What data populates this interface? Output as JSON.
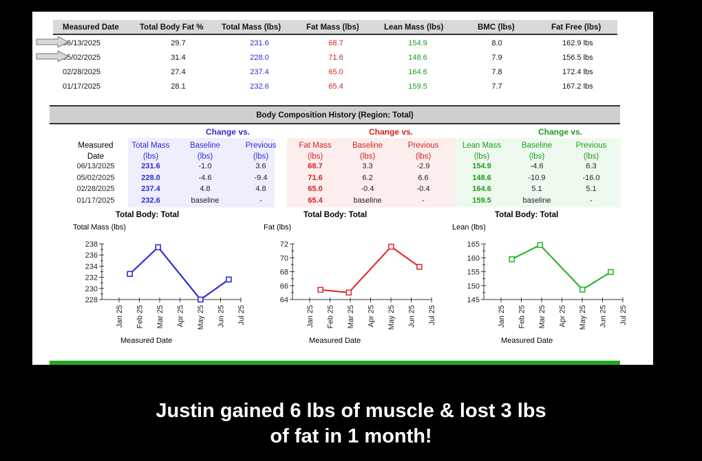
{
  "summary_table": {
    "headers": [
      "Measured Date",
      "Total Body Fat %",
      "Total Mass (lbs)",
      "Fat Mass (lbs)",
      "Lean Mass (lbs)",
      "BMC (lbs)",
      "Fat Free (lbs)"
    ],
    "rows": [
      [
        "06/13/2025",
        "29.7",
        "231.6",
        "68.7",
        "154.9",
        "8.0",
        "162.9 lbs"
      ],
      [
        "05/02/2025",
        "31.4",
        "228.0",
        "71.6",
        "148.6",
        "7.9",
        "156.5 lbs"
      ],
      [
        "02/28/2025",
        "27.4",
        "237.4",
        "65.0",
        "164.6",
        "7.8",
        "172.4 lbs"
      ],
      [
        "01/17/2025",
        "28.1",
        "232.6",
        "65.4",
        "159.5",
        "7.7",
        "167.2 lbs"
      ]
    ]
  },
  "history": {
    "title": "Body Composition History (Region: Total)",
    "group_headers": [
      "Change vs.",
      "Change vs.",
      "Change vs."
    ],
    "headers": [
      [
        "Measured",
        "Date"
      ],
      [
        "Total Mass",
        "(lbs)"
      ],
      [
        "Baseline",
        "(lbs)"
      ],
      [
        "Previous",
        "(lbs)"
      ],
      [
        "Fat Mass",
        "(lbs)"
      ],
      [
        "Baseline",
        "(lbs)"
      ],
      [
        "Previous",
        "(lbs)"
      ],
      [
        "Lean Mass",
        "(lbs)"
      ],
      [
        "Baseline",
        "(lbs)"
      ],
      [
        "Previous",
        "(lbs)"
      ]
    ],
    "rows": [
      [
        "06/13/2025",
        "231.6",
        "-1.0",
        "3.6",
        "68.7",
        "3.3",
        "-2.9",
        "154.9",
        "-4.6",
        "6.3"
      ],
      [
        "05/02/2025",
        "228.0",
        "-4.6",
        "-9.4",
        "71.6",
        "6.2",
        "6.6",
        "148.6",
        "-10.9",
        "-16.0"
      ],
      [
        "02/28/2025",
        "237.4",
        "4.8",
        "4.8",
        "65.0",
        "-0.4",
        "-0.4",
        "164.6",
        "5.1",
        "5.1"
      ],
      [
        "01/17/2025",
        "232.6",
        "baseline",
        "-",
        "65.4",
        "baseline",
        "-",
        "159.5",
        "baseline",
        "-"
      ]
    ]
  },
  "colors": {
    "mass": "#2b2bd8",
    "fat": "#d42020",
    "lean": "#22aa22",
    "header_bg": "#d9d9d9",
    "accent_bar": "#22a822"
  },
  "chart_data": [
    {
      "type": "line",
      "title": "Total Body: Total",
      "ylabel": "Total Mass (lbs)",
      "xlabel": "Measured Date",
      "x_ticks": [
        "Jan 25",
        "Feb 25",
        "Mar 25",
        "Apr 25",
        "May 25",
        "Jun 25",
        "Jul 25"
      ],
      "y_ticks": [
        228,
        230,
        232,
        234,
        236,
        238
      ],
      "ylim": [
        228,
        238
      ],
      "x": [
        "2025-01-17",
        "2025-02-28",
        "2025-05-02",
        "2025-06-13"
      ],
      "values": [
        232.6,
        237.4,
        228.0,
        231.6
      ],
      "color": "#2b2bd8"
    },
    {
      "type": "line",
      "title": "Total Body: Total",
      "ylabel": "Fat (lbs)",
      "xlabel": "Measured Date",
      "x_ticks": [
        "Jan 25",
        "Feb 25",
        "Mar 25",
        "Apr 25",
        "May 25",
        "Jun 25",
        "Jul 25"
      ],
      "y_ticks": [
        64,
        66,
        68,
        70,
        72
      ],
      "ylim": [
        64,
        72
      ],
      "x": [
        "2025-01-17",
        "2025-02-28",
        "2025-05-02",
        "2025-06-13"
      ],
      "values": [
        65.4,
        65.0,
        71.6,
        68.7
      ],
      "color": "#e03030"
    },
    {
      "type": "line",
      "title": "Total Body: Total",
      "ylabel": "Lean (lbs)",
      "xlabel": "Measured Date",
      "x_ticks": [
        "Jan 25",
        "Feb 25",
        "Mar 25",
        "Apr 25",
        "May 25",
        "Jun 25",
        "Jul 25"
      ],
      "y_ticks": [
        145,
        150,
        155,
        160,
        165
      ],
      "ylim": [
        145,
        165
      ],
      "x": [
        "2025-01-17",
        "2025-02-28",
        "2025-05-02",
        "2025-06-13"
      ],
      "values": [
        159.5,
        164.6,
        148.6,
        154.9
      ],
      "color": "#2cb52c"
    }
  ],
  "caption": {
    "line1": "Justin gained 6 lbs of muscle & lost 3 lbs",
    "line2": "of fat in 1 month!"
  }
}
